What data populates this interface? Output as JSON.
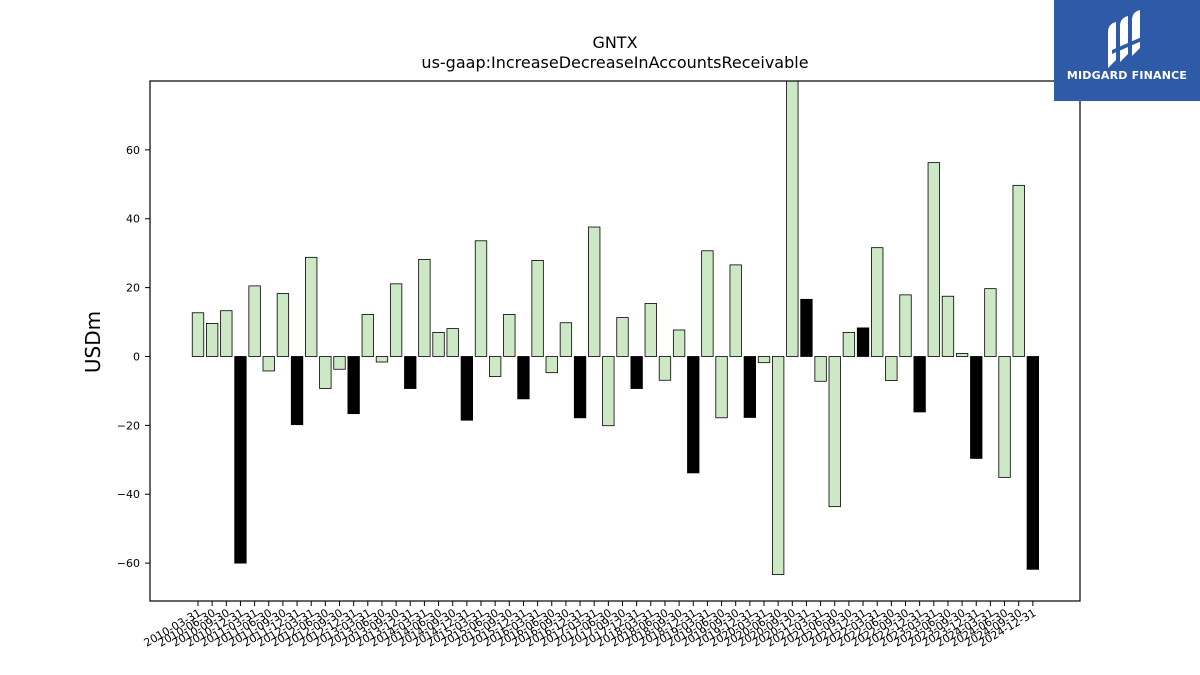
{
  "logo": {
    "text": "MIDGARD FINANCE",
    "bg_color": "#2f5aa8"
  },
  "chart_data": {
    "type": "bar",
    "title": "GNTX",
    "subtitle": "us-gaap:IncreaseDecreaseInAccountsReceivable",
    "ylabel": "USDm",
    "xlabel": "",
    "ylim": [
      -71,
      80
    ],
    "yticks": [
      -60,
      -40,
      -20,
      0,
      20,
      40,
      60
    ],
    "colors": {
      "quarter": "#cde8c5",
      "annual": "#000000",
      "edge": "#000000"
    },
    "categories": [
      "2010-03-31",
      "2010-06-30",
      "2010-09-30",
      "2010-12-31",
      "2011-03-31",
      "2011-06-30",
      "2011-09-30",
      "2011-12-31",
      "2012-03-31",
      "2012-06-30",
      "2012-09-30",
      "2012-12-31",
      "2013-03-31",
      "2013-06-30",
      "2013-09-30",
      "2013-12-31",
      "2014-03-31",
      "2014-06-30",
      "2014-09-30",
      "2014-12-31",
      "2015-03-31",
      "2015-06-30",
      "2015-09-30",
      "2015-12-31",
      "2016-03-31",
      "2016-06-30",
      "2016-09-30",
      "2016-12-31",
      "2017-03-31",
      "2017-06-30",
      "2017-09-30",
      "2017-12-31",
      "2018-03-31",
      "2018-06-30",
      "2018-09-30",
      "2018-12-31",
      "2019-03-31",
      "2019-06-30",
      "2019-09-30",
      "2019-12-31",
      "2020-03-31",
      "2020-06-30",
      "2020-09-30",
      "2020-12-31",
      "2021-03-31",
      "2021-06-30",
      "2021-09-30",
      "2021-12-31",
      "2022-03-31",
      "2022-06-30",
      "2022-09-30",
      "2022-12-31",
      "2023-03-31",
      "2023-06-30",
      "2023-09-30",
      "2023-12-31",
      "2024-03-31",
      "2024-06-30",
      "2024-09-30",
      "2024-12-31"
    ],
    "values": [
      12.7,
      9.6,
      13.3,
      -60.0,
      20.5,
      -4.2,
      18.3,
      -19.8,
      28.8,
      -9.3,
      -3.7,
      -16.6,
      12.2,
      -1.6,
      21.1,
      -9.3,
      28.2,
      7.0,
      8.1,
      -18.5,
      33.6,
      -5.8,
      12.2,
      -12.3,
      27.9,
      -4.7,
      9.8,
      -17.8,
      37.6,
      -20.1,
      11.3,
      -9.3,
      15.4,
      -6.9,
      7.7,
      -33.8,
      30.7,
      -17.8,
      26.6,
      -17.7,
      -1.8,
      -63.3,
      80.0,
      16.6,
      -7.2,
      -43.6,
      7.0,
      8.3,
      31.6,
      -7.0,
      17.9,
      -16.1,
      56.3,
      17.5,
      0.9,
      -29.6,
      19.7,
      -35.1,
      49.7,
      -61.8
    ],
    "annual": [
      false,
      false,
      false,
      true,
      false,
      false,
      false,
      true,
      false,
      false,
      false,
      true,
      false,
      false,
      false,
      true,
      false,
      false,
      false,
      true,
      false,
      false,
      false,
      true,
      false,
      false,
      false,
      true,
      false,
      false,
      false,
      true,
      false,
      false,
      false,
      true,
      false,
      false,
      false,
      true,
      false,
      false,
      false,
      true,
      false,
      false,
      false,
      true,
      false,
      false,
      false,
      true,
      false,
      false,
      false,
      true,
      false,
      false,
      false,
      true
    ]
  }
}
